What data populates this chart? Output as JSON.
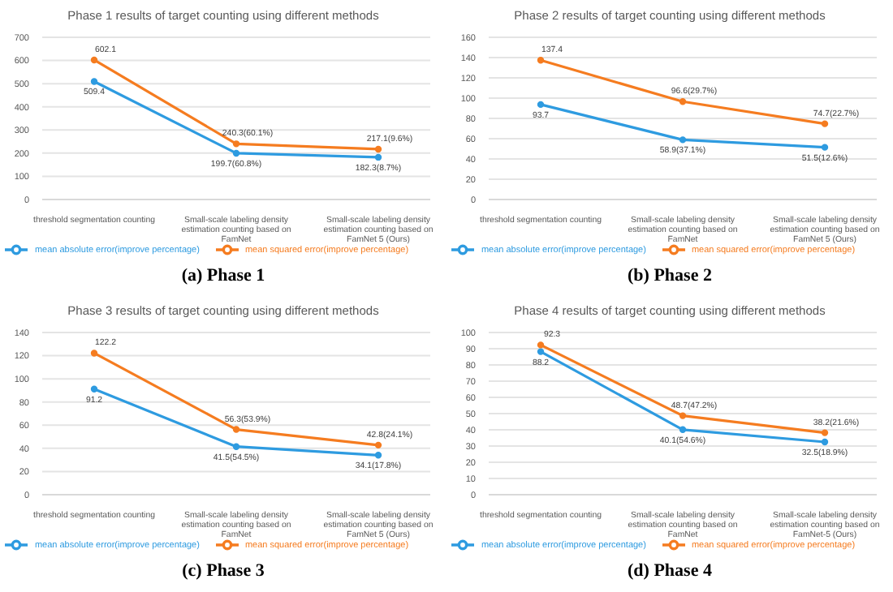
{
  "chart_data": [
    {
      "type": "line",
      "title": "Phase 1 results of target counting using different methods",
      "categories": [
        "threshold segmentation counting",
        "Small-scale labeling density estimation counting based on FamNet",
        "Small-scale labeling density estimation counting based on FamNet 5 (Ours)"
      ],
      "ylim": [
        0,
        700
      ],
      "yticks": [
        0,
        100,
        200,
        300,
        400,
        500,
        600,
        700
      ],
      "grid": "y",
      "legend": "bottom",
      "marker": "circle",
      "series": [
        {
          "name": "mean absolute error(improve percentage)",
          "color": "#2e9be0",
          "values": [
            509.4,
            199.7,
            182.3
          ],
          "value_labels": [
            "509.4",
            "199.7(60.8%)",
            "182.3(8.7%)"
          ]
        },
        {
          "name": "mean squared error(improve percentage)",
          "color": "#f57c20",
          "values": [
            602.1,
            240.3,
            217.1
          ],
          "value_labels": [
            "602.1",
            "240.3(60.1%)",
            "217.1(9.6%)"
          ]
        }
      ],
      "annotations": [
        "(a) Phase 1"
      ]
    },
    {
      "type": "line",
      "title": "Phase 2 results of target counting using different methods",
      "categories": [
        "threshold segmentation counting",
        "Small-scale labeling density estimation counting based on FamNet",
        "Small-scale labeling density estimation counting based on FamNet 5 (Ours)"
      ],
      "ylim": [
        0,
        160
      ],
      "yticks": [
        0,
        20,
        40,
        60,
        80,
        100,
        120,
        140,
        160
      ],
      "grid": "y",
      "legend": "bottom",
      "marker": "circle",
      "series": [
        {
          "name": "mean absolute error(improve percentage)",
          "color": "#2e9be0",
          "values": [
            93.7,
            58.9,
            51.5
          ],
          "value_labels": [
            "93.7",
            "58.9(37.1%)",
            "51.5(12.6%)"
          ]
        },
        {
          "name": "mean squared error(improve percentage)",
          "color": "#f57c20",
          "values": [
            137.4,
            96.6,
            74.7
          ],
          "value_labels": [
            "137.4",
            "96.6(29.7%)",
            "74.7(22.7%)"
          ]
        }
      ],
      "annotations": [
        "(b) Phase 2"
      ]
    },
    {
      "type": "line",
      "title": "Phase 3 results of target counting using different methods",
      "categories": [
        "threshold segmentation counting",
        "Small-scale labeling density estimation counting based on FamNet",
        "Small-scale labeling density estimation counting based on FamNet 5 (Ours)"
      ],
      "ylim": [
        0,
        140
      ],
      "yticks": [
        0,
        20,
        40,
        60,
        80,
        100,
        120,
        140
      ],
      "grid": "y",
      "legend": "bottom",
      "marker": "circle",
      "series": [
        {
          "name": "mean absolute error(improve percentage)",
          "color": "#2e9be0",
          "values": [
            91.2,
            41.5,
            34.1
          ],
          "value_labels": [
            "91.2",
            "41.5(54.5%)",
            "34.1(17.8%)"
          ]
        },
        {
          "name": "mean squared error(improve percentage)",
          "color": "#f57c20",
          "values": [
            122.2,
            56.3,
            42.8
          ],
          "value_labels": [
            "122.2",
            "56.3(53.9%)",
            "42.8(24.1%)"
          ]
        }
      ],
      "annotations": [
        "(c) Phase 3"
      ]
    },
    {
      "type": "line",
      "title": "Phase 4 results of target counting using different methods",
      "categories": [
        "threshold segmentation counting",
        "Small-scale labeling density estimation counting based on FamNet",
        "Small-scale labeling density estimation counting based on FamNet-5 (Ours)"
      ],
      "ylim": [
        0,
        100
      ],
      "yticks": [
        0,
        10,
        20,
        30,
        40,
        50,
        60,
        70,
        80,
        90,
        100
      ],
      "grid": "y",
      "legend": "bottom",
      "marker": "circle",
      "series": [
        {
          "name": "mean absolute error(improve percentage)",
          "color": "#2e9be0",
          "values": [
            88.2,
            40.1,
            32.5
          ],
          "value_labels": [
            "88.2",
            "40.1(54.6%)",
            "32.5(18.9%)"
          ]
        },
        {
          "name": "mean squared error(improve percentage)",
          "color": "#f57c20",
          "values": [
            92.3,
            48.7,
            38.2
          ],
          "value_labels": [
            "92.3",
            "48.7(47.2%)",
            "38.2(21.6%)"
          ]
        }
      ],
      "annotations": [
        "(d) Phase 4"
      ]
    }
  ]
}
